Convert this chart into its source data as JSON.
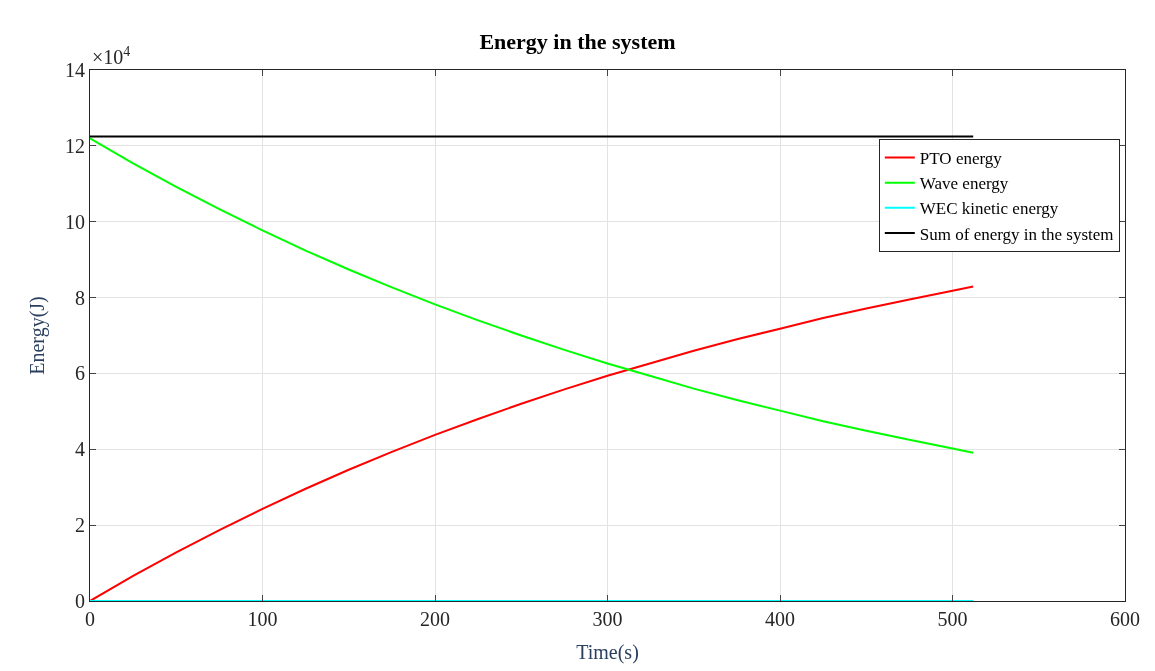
{
  "chart_data": {
    "type": "line",
    "title": "Energy in the system",
    "xlabel": "Time(s)",
    "ylabel": "Energy(J)",
    "annotations": [
      "×10$^{4}$"
    ],
    "xlim": [
      0,
      600
    ],
    "xticks": [
      0,
      100,
      200,
      300,
      400,
      500,
      600
    ],
    "ylim": [
      0,
      14
    ],
    "yticks": [
      0,
      2,
      4,
      6,
      8,
      10,
      12,
      14
    ],
    "grid": true,
    "legend": "top right",
    "marker": "none",
    "line_style": "solid",
    "x": [
      0,
      25,
      50,
      75,
      100,
      125,
      150,
      175,
      200,
      225,
      250,
      275,
      300,
      325,
      350,
      375,
      400,
      425,
      450,
      475,
      500,
      512
    ],
    "series": [
      {
        "name": "PTO energy",
        "color": "#ff0000",
        "values": [
          0,
          0.66,
          1.28,
          1.87,
          2.43,
          2.96,
          3.46,
          3.93,
          4.38,
          4.8,
          5.2,
          5.58,
          5.94,
          6.27,
          6.6,
          6.9,
          7.18,
          7.46,
          7.71,
          7.95,
          8.18,
          8.29
        ]
      },
      {
        "name": "Wave energy",
        "color": "#00ff00",
        "values": [
          12.2,
          11.54,
          10.92,
          10.33,
          9.77,
          9.24,
          8.74,
          8.27,
          7.82,
          7.4,
          7.0,
          6.62,
          6.26,
          5.93,
          5.6,
          5.3,
          5.02,
          4.74,
          4.49,
          4.25,
          4.02,
          3.91
        ]
      },
      {
        "name": "WEC kinetic energy",
        "color": "#00ffff",
        "values": [
          0,
          0,
          0,
          0,
          0,
          0,
          0,
          0,
          0,
          0,
          0,
          0,
          0,
          0,
          0,
          0,
          0,
          0,
          0,
          0,
          0,
          0
        ]
      },
      {
        "name": "Sum of energy in the system",
        "color": "#000000",
        "values": [
          12.25,
          12.25,
          12.25,
          12.25,
          12.25,
          12.25,
          12.25,
          12.25,
          12.25,
          12.25,
          12.25,
          12.25,
          12.25,
          12.25,
          12.25,
          12.25,
          12.25,
          12.25,
          12.25,
          12.25,
          12.25,
          12.25
        ]
      }
    ]
  }
}
